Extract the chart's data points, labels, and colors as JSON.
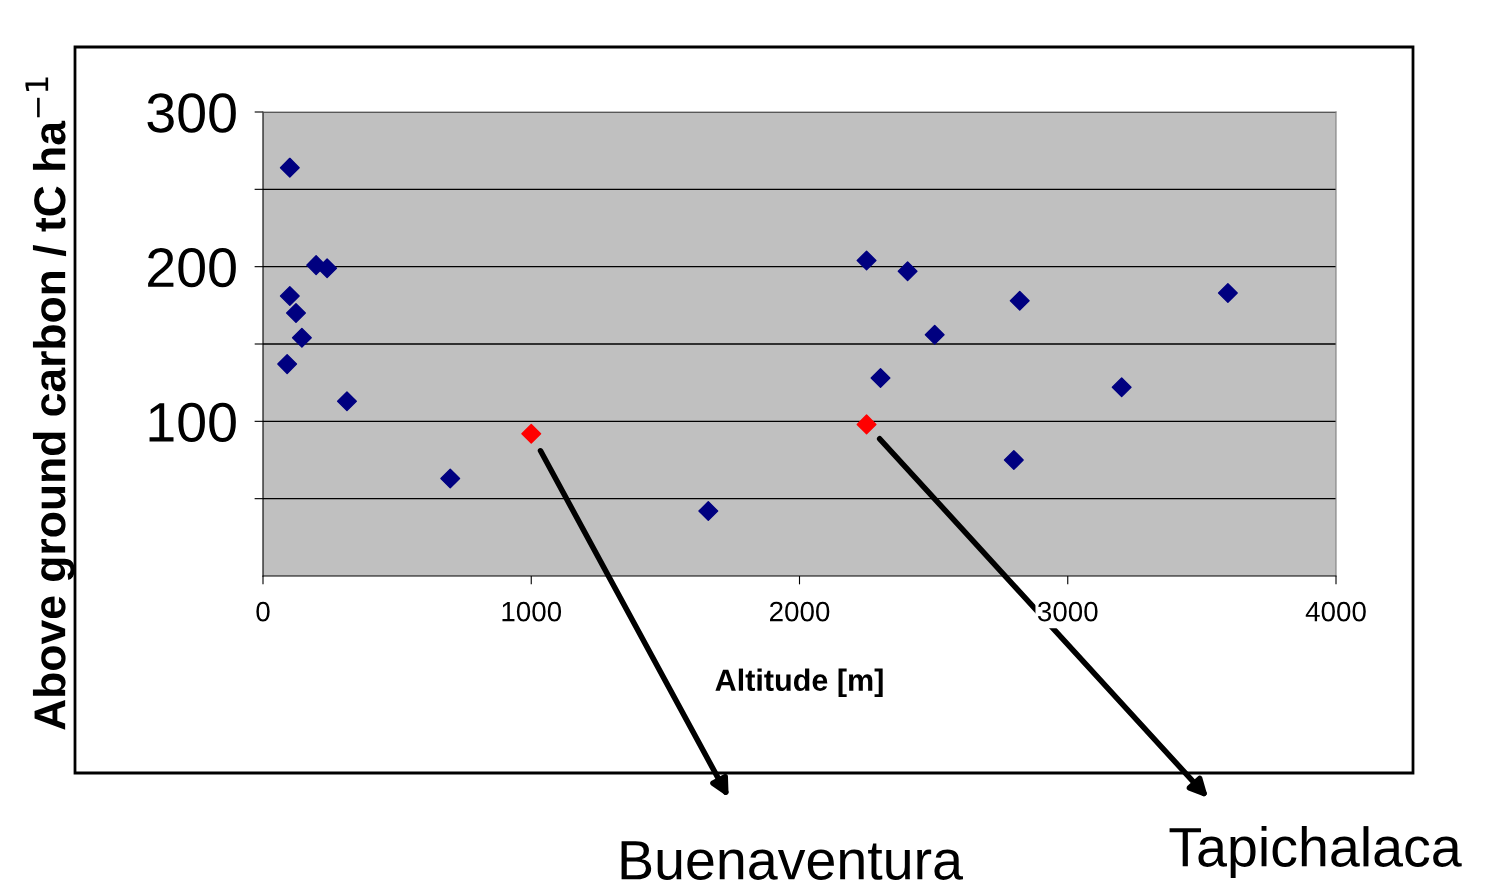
{
  "chart_data": {
    "type": "scatter",
    "xlabel": "Altitude [m]",
    "ylabel": "Above ground carbon / tC ha$^{−1}$",
    "xlim": [
      0,
      4000
    ],
    "ylim": [
      0,
      300
    ],
    "xticks": [
      0,
      1000,
      2000,
      3000,
      4000
    ],
    "yticks": [
      {
        "value": 50,
        "label": null
      },
      100,
      {
        "value": 150,
        "label": null
      },
      200,
      {
        "value": 250,
        "label": null
      },
      300
    ],
    "grid": "y",
    "legend": false,
    "marker": "diamond",
    "series": [
      {
        "color": "#000080",
        "x": [
          100,
          100,
          123,
          145,
          90,
          198,
          239,
          313,
          698,
          1660,
          2250,
          2403,
          2504,
          2302,
          2821,
          2799,
          3201,
          3597
        ],
        "values": [
          264,
          181,
          170,
          154,
          137,
          201,
          199,
          113,
          63,
          42,
          204,
          197,
          156,
          128,
          178,
          75,
          122,
          183
        ]
      },
      {
        "color": "#ff0000",
        "x": [
          1000,
          2250
        ],
        "values": [
          92,
          98
        ]
      }
    ],
    "annotations": [
      "Buenaventura",
      "Tapichalaca"
    ]
  }
}
